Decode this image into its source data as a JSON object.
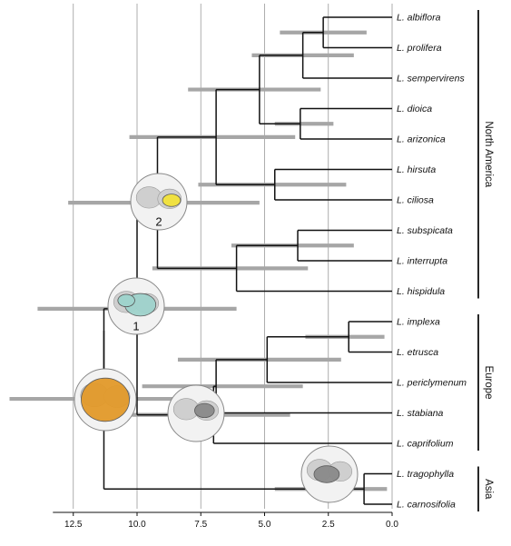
{
  "axis": {
    "ticks": [
      12.5,
      10.0,
      7.5,
      5.0,
      2.5,
      0.0
    ],
    "tick_labels": [
      "12.5",
      "10.0",
      "7.5",
      "5.0",
      "2.5",
      "0.0"
    ],
    "range": [
      13.5,
      0
    ]
  },
  "taxa": [
    {
      "genus": "L.",
      "species": "albiflora"
    },
    {
      "genus": "L.",
      "species": "prolifera"
    },
    {
      "genus": "L.",
      "species": "sempervirens"
    },
    {
      "genus": "L.",
      "species": "dioica"
    },
    {
      "genus": "L.",
      "species": "arizonica"
    },
    {
      "genus": "L.",
      "species": "hirsuta"
    },
    {
      "genus": "L.",
      "species": "ciliosa"
    },
    {
      "genus": "L.",
      "species": "subspicata"
    },
    {
      "genus": "L.",
      "species": "interrupta"
    },
    {
      "genus": "L.",
      "species": "hispidula"
    },
    {
      "genus": "L.",
      "species": "implexa"
    },
    {
      "genus": "L.",
      "species": "etrusca"
    },
    {
      "genus": "L.",
      "species": "periclymenum"
    },
    {
      "genus": "L.",
      "species": "stabiana"
    },
    {
      "genus": "L.",
      "species": "caprifolium"
    },
    {
      "genus": "L.",
      "species": "tragophylla"
    },
    {
      "genus": "L.",
      "species": "carnosifolia"
    }
  ],
  "regions": [
    {
      "label": "North America",
      "from": 0,
      "to": 9
    },
    {
      "label": "Europe",
      "from": 10,
      "to": 14
    },
    {
      "label": "Asia",
      "from": 15,
      "to": 16
    }
  ],
  "nodes": [
    {
      "id": "n_alb_pro",
      "age": 2.7,
      "children": [
        0,
        1
      ],
      "ci": [
        4.4,
        1.0
      ]
    },
    {
      "id": "n_sem",
      "age": 3.5,
      "children": [
        "n_alb_pro",
        2
      ],
      "ci": [
        5.5,
        1.5
      ]
    },
    {
      "id": "n_dio_ari",
      "age": 3.6,
      "children": [
        3,
        4
      ],
      "ci": [
        4.6,
        2.3
      ]
    },
    {
      "id": "n_nfive",
      "age": 5.2,
      "children": [
        "n_sem",
        "n_dio_ari"
      ],
      "ci": [
        8.0,
        2.8
      ]
    },
    {
      "id": "n_hir_cil",
      "age": 4.6,
      "children": [
        5,
        6
      ],
      "ci": [
        7.6,
        1.8
      ]
    },
    {
      "id": "n_nseven",
      "age": 6.9,
      "children": [
        "n_nfive",
        "n_hir_cil"
      ],
      "ci": [
        10.3,
        3.8
      ]
    },
    {
      "id": "n_sub_int",
      "age": 3.7,
      "children": [
        7,
        8
      ],
      "ci": [
        6.3,
        1.5
      ]
    },
    {
      "id": "n_subgrp",
      "age": 6.1,
      "children": [
        "n_sub_int",
        9
      ],
      "ci": [
        9.4,
        3.3
      ]
    },
    {
      "id": "n_na",
      "age": 9.2,
      "children": [
        "n_nseven",
        "n_subgrp"
      ],
      "ci": [
        12.7,
        5.2
      ]
    },
    {
      "id": "n_imp_etr",
      "age": 1.7,
      "children": [
        10,
        11
      ],
      "ci": [
        3.4,
        0.3
      ]
    },
    {
      "id": "n_per",
      "age": 4.9,
      "children": [
        "n_imp_etr",
        12
      ],
      "ci": [
        8.4,
        2.0
      ]
    },
    {
      "id": "n_sta",
      "age": 6.9,
      "children": [
        "n_per",
        13
      ],
      "ci": [
        9.8,
        3.5
      ]
    },
    {
      "id": "n_eu",
      "age": 7.0,
      "children": [
        "n_sta",
        14
      ],
      "ci": [
        10.2,
        4.0
      ]
    },
    {
      "id": "n_naeu",
      "age": 10.0,
      "children": [
        "n_na",
        "n_eu"
      ],
      "ci": [
        13.9,
        6.1
      ]
    },
    {
      "id": "n_asia",
      "age": 1.1,
      "children": [
        15,
        16
      ],
      "ci": [
        4.6,
        0.2
      ]
    },
    {
      "id": "n_root",
      "age": 11.3,
      "children": [
        "n_naeu",
        "n_asia"
      ],
      "ci": [
        15.0,
        7.3
      ]
    }
  ],
  "ancestral_maps": [
    {
      "id": "map-2",
      "number": "2",
      "highlight": "#f2e33a",
      "node": "n_na"
    },
    {
      "id": "map-1",
      "number": "1",
      "highlight": "#9fd3cc",
      "node": "n_naeu"
    },
    {
      "id": "map-root",
      "number": "",
      "highlight": "#e39a2a",
      "node": "n_root"
    },
    {
      "id": "map-eu",
      "number": "",
      "highlight": "#8a8a8a",
      "node": "n_eu"
    },
    {
      "id": "map-asia",
      "number": "",
      "highlight": "#8a8a8a",
      "node": "n_asia"
    }
  ]
}
